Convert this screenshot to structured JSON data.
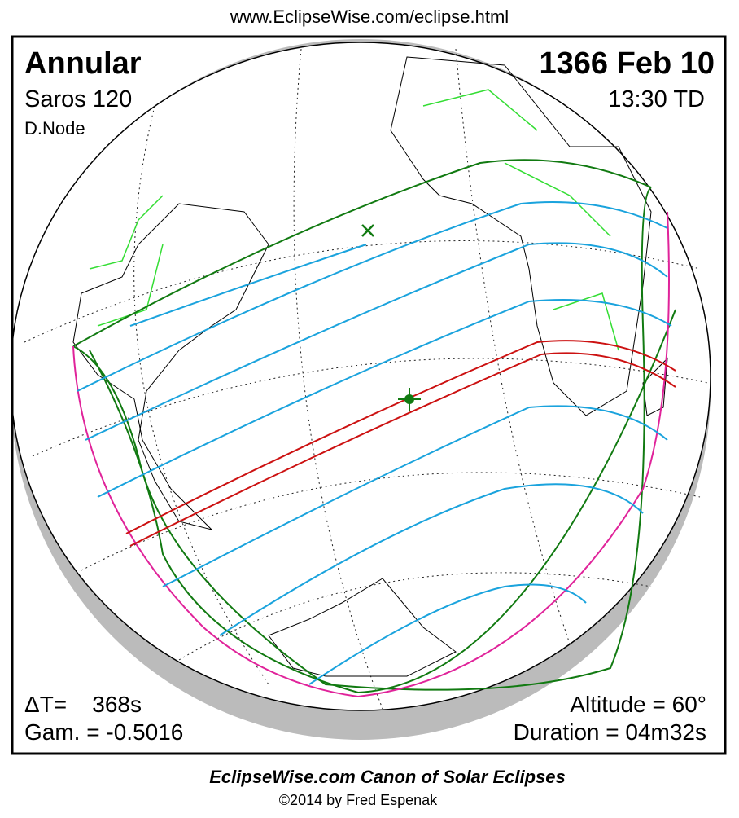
{
  "header": {
    "url": "www.EclipseWise.com/eclipse.html"
  },
  "panel": {
    "eclipse_type": "Annular",
    "saros": "Saros 120",
    "node": "D.Node",
    "date": "1366 Feb 10",
    "time": "13:30 TD",
    "delta_t": "ΔT=    368s",
    "gamma": "Gam. = -0.5016",
    "altitude": "Altitude = 60°",
    "duration": "Duration = 04m32s"
  },
  "footer": {
    "title": "EclipseWise.com Canon of Solar Eclipses",
    "copyright": "©2014 by Fred Espenak"
  }
}
